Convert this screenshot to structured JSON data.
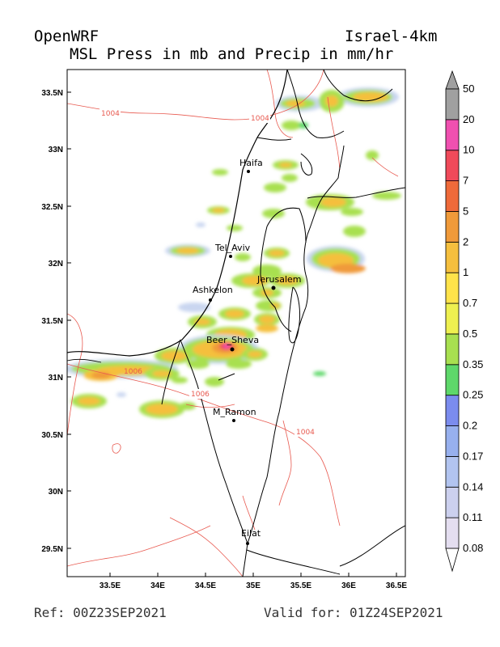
{
  "header": {
    "model": "OpenWRF",
    "domain": "Israel-4km",
    "title": "MSL Press in mb and Precip in mm/hr"
  },
  "footer": {
    "ref": "Ref: 00Z23SEP2021",
    "valid": "Valid for: 01Z24SEP2021"
  },
  "map": {
    "lat_ticks": [
      "33.5N",
      "33N",
      "32.5N",
      "32N",
      "31.5N",
      "31N",
      "30.5N",
      "30N",
      "29.5N"
    ],
    "lon_ticks": [
      "33.5E",
      "34E",
      "34.5E",
      "35E",
      "35.5E",
      "36E",
      "36.5E"
    ],
    "cities": [
      {
        "name": "Haifa"
      },
      {
        "name": "Tel_Aviv"
      },
      {
        "name": "Jerusalem"
      },
      {
        "name": "Ashkelon"
      },
      {
        "name": "Beer_Sheva"
      },
      {
        "name": "M_Ramon"
      },
      {
        "name": "Eilat"
      }
    ],
    "isobar_labels": [
      "1004",
      "1004",
      "1006",
      "1006",
      "1004"
    ],
    "isobar_color": "#e85a50"
  },
  "colorbar": {
    "levels": [
      "0.08",
      "0.11",
      "0.14",
      "0.17",
      "0.2",
      "0.25",
      "0.35",
      "0.5",
      "0.7",
      "1",
      "2",
      "5",
      "7",
      "10",
      "20",
      "50"
    ],
    "colors": [
      "#ffffff",
      "#e4def0",
      "#ccd0ee",
      "#b2c4f0",
      "#97b0ee",
      "#7b8cee",
      "#5ed86a",
      "#a8e050",
      "#eef050",
      "#ffe34a",
      "#f5bf3e",
      "#f09a3a",
      "#ef6a3a",
      "#f04a5a",
      "#f050b0",
      "#a0a0a0"
    ]
  }
}
